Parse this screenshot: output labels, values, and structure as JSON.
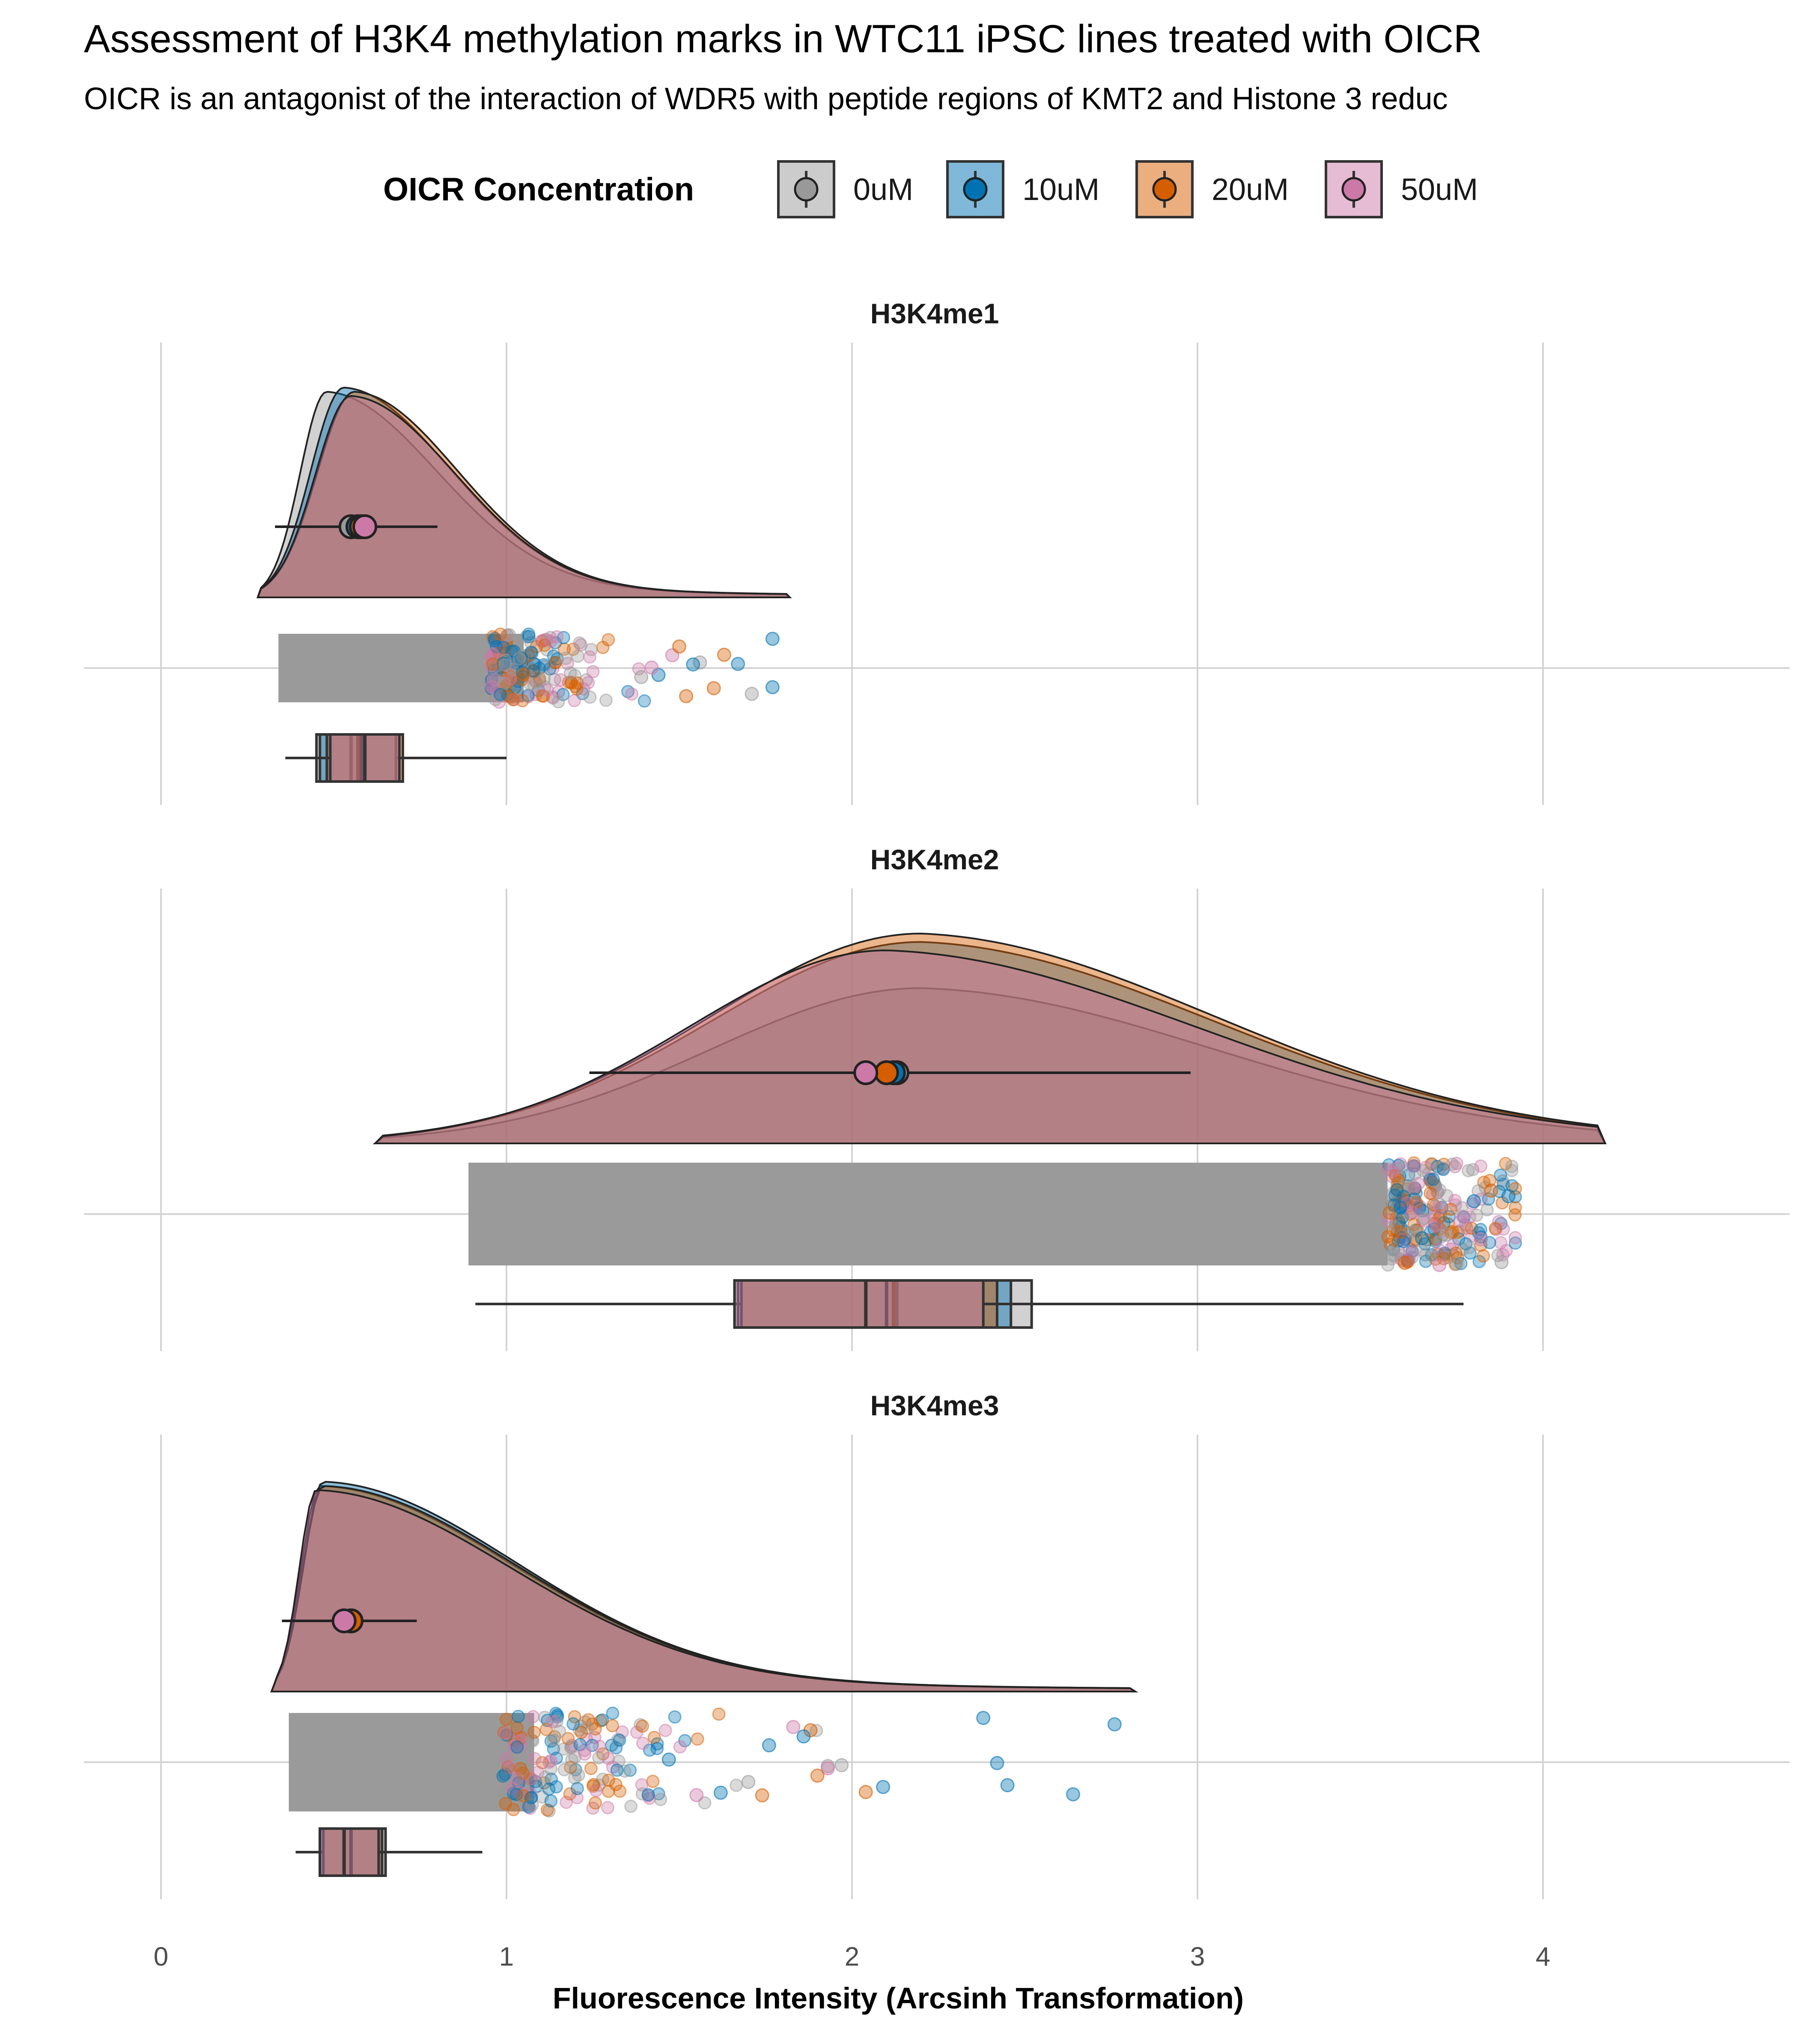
{
  "chart_data": {
    "type": "raincloud",
    "title": "Assessment of H3K4 methylation marks in WTC11 iPSC lines treated with OICR",
    "subtitle": "OICR is an antagonist of the interaction of WDR5 with peptide regions of KMT2 and Histone 3 reduc",
    "xlabel": "Fluorescence Intensity (Arcsinh Transformation)",
    "xlim": [
      -0.22,
      4.72
    ],
    "x_ticks": [
      0,
      1,
      2,
      3,
      4
    ],
    "x_tick_labels": [
      "0",
      "1",
      "2",
      "3",
      "4"
    ],
    "grid": true,
    "legend": {
      "title": "OICR Concentration",
      "position": "top",
      "entries": [
        {
          "label": "0uM",
          "color": "#999999"
        },
        {
          "label": "10uM",
          "color": "#0072B2"
        },
        {
          "label": "20uM",
          "color": "#D55E00"
        },
        {
          "label": "50uM",
          "color": "#CC79A7"
        }
      ]
    },
    "panels": [
      {
        "name": "H3K4me1",
        "density_range": [
          0.28,
          1.82
        ],
        "jitter_range": [
          0.34,
          1.77
        ],
        "groups": [
          {
            "concentration": "0uM",
            "density_peak": 0.48,
            "point_mean": 0.55,
            "sd_range": [
              0.33,
              0.78
            ],
            "box": {
              "whisker_low": 0.36,
              "q1": 0.45,
              "median": 0.55,
              "q3": 0.68,
              "whisker_high": 1.0
            }
          },
          {
            "concentration": "10uM",
            "density_peak": 0.53,
            "point_mean": 0.57,
            "sd_range": [
              0.34,
              0.79
            ],
            "box": {
              "whisker_low": 0.37,
              "q1": 0.46,
              "median": 0.57,
              "q3": 0.69,
              "whisker_high": 1.0
            }
          },
          {
            "concentration": "20uM",
            "density_peak": 0.56,
            "point_mean": 0.58,
            "sd_range": [
              0.35,
              0.8
            ],
            "box": {
              "whisker_low": 0.38,
              "q1": 0.48,
              "median": 0.58,
              "q3": 0.7,
              "whisker_high": 1.0
            }
          },
          {
            "concentration": "50uM",
            "density_peak": 0.55,
            "point_mean": 0.59,
            "sd_range": [
              0.35,
              0.8
            ],
            "box": {
              "whisker_low": 0.38,
              "q1": 0.49,
              "median": 0.59,
              "q3": 0.69,
              "whisker_high": 1.0
            }
          }
        ],
        "outliers": [
          {
            "x": 1.56,
            "concentration": "0uM"
          },
          {
            "x": 1.71,
            "concentration": "0uM"
          },
          {
            "x": 1.77,
            "concentration": "10uM"
          },
          {
            "x": 1.77,
            "concentration": "10uM"
          },
          {
            "x": 1.54,
            "concentration": "10uM"
          },
          {
            "x": 1.67,
            "concentration": "10uM"
          },
          {
            "x": 1.63,
            "concentration": "20uM"
          },
          {
            "x": 1.6,
            "concentration": "20uM"
          },
          {
            "x": 1.52,
            "concentration": "20uM"
          },
          {
            "x": 1.48,
            "concentration": "50uM"
          },
          {
            "x": 1.44,
            "concentration": "10uM"
          },
          {
            "x": 1.5,
            "concentration": "20uM"
          },
          {
            "x": 1.39,
            "concentration": "0uM"
          },
          {
            "x": 1.42,
            "concentration": "50uM"
          }
        ]
      },
      {
        "name": "H3K4me2",
        "density_range": [
          0.62,
          4.18
        ],
        "jitter_range": [
          0.89,
          3.92
        ],
        "groups": [
          {
            "concentration": "0uM",
            "density_peak": 2.2,
            "point_mean": 2.13,
            "sd_range": [
              1.27,
              2.98
            ],
            "box": {
              "whisker_low": 0.91,
              "q1": 1.66,
              "median": 2.13,
              "q3": 2.52,
              "whisker_high": 3.77
            }
          },
          {
            "concentration": "10uM",
            "density_peak": 2.2,
            "point_mean": 2.12,
            "sd_range": [
              1.28,
              2.96
            ],
            "box": {
              "whisker_low": 0.92,
              "q1": 1.67,
              "median": 2.12,
              "q3": 2.46,
              "whisker_high": 3.75
            }
          },
          {
            "concentration": "20uM",
            "density_peak": 2.2,
            "point_mean": 2.1,
            "sd_range": [
              1.27,
              2.94
            ],
            "box": {
              "whisker_low": 0.92,
              "q1": 1.68,
              "median": 2.1,
              "q3": 2.42,
              "whisker_high": 3.72
            }
          },
          {
            "concentration": "50uM",
            "density_peak": 2.1,
            "point_mean": 2.04,
            "sd_range": [
              1.24,
              2.9
            ],
            "box": {
              "whisker_low": 0.92,
              "q1": 1.66,
              "median": 2.04,
              "q3": 2.38,
              "whisker_high": 3.7
            }
          }
        ],
        "outliers": [
          {
            "x": 3.75,
            "concentration": "0uM"
          },
          {
            "x": 3.8,
            "concentration": "10uM"
          },
          {
            "x": 3.85,
            "concentration": "20uM"
          },
          {
            "x": 3.7,
            "concentration": "50uM"
          },
          {
            "x": 3.88,
            "concentration": "0uM"
          },
          {
            "x": 3.65,
            "concentration": "10uM"
          },
          {
            "x": 3.6,
            "concentration": "20uM"
          },
          {
            "x": 3.82,
            "concentration": "50uM"
          },
          {
            "x": 3.72,
            "concentration": "0uM"
          },
          {
            "x": 3.9,
            "concentration": "10uM"
          }
        ]
      },
      {
        "name": "H3K4me3",
        "density_range": [
          0.32,
          2.82
        ],
        "jitter_range": [
          0.37,
          2.76
        ],
        "groups": [
          {
            "concentration": "0uM",
            "density_peak": 0.46,
            "point_mean": 0.55,
            "sd_range": [
              0.36,
              0.74
            ],
            "box": {
              "whisker_low": 0.39,
              "q1": 0.46,
              "median": 0.55,
              "q3": 0.65,
              "whisker_high": 0.93
            }
          },
          {
            "concentration": "10uM",
            "density_peak": 0.47,
            "point_mean": 0.55,
            "sd_range": [
              0.36,
              0.74
            ],
            "box": {
              "whisker_low": 0.39,
              "q1": 0.46,
              "median": 0.55,
              "q3": 0.64,
              "whisker_high": 0.93
            }
          },
          {
            "concentration": "20uM",
            "density_peak": 0.47,
            "point_mean": 0.55,
            "sd_range": [
              0.36,
              0.74
            ],
            "box": {
              "whisker_low": 0.39,
              "q1": 0.47,
              "median": 0.55,
              "q3": 0.64,
              "whisker_high": 0.92
            }
          },
          {
            "concentration": "50uM",
            "density_peak": 0.45,
            "point_mean": 0.53,
            "sd_range": [
              0.35,
              0.73
            ],
            "box": {
              "whisker_low": 0.39,
              "q1": 0.46,
              "median": 0.53,
              "q3": 0.63,
              "whisker_high": 0.92
            }
          }
        ],
        "outliers": [
          {
            "x": 2.42,
            "concentration": "10uM"
          },
          {
            "x": 2.45,
            "concentration": "10uM"
          },
          {
            "x": 2.64,
            "concentration": "10uM"
          },
          {
            "x": 2.38,
            "concentration": "10uM"
          },
          {
            "x": 2.76,
            "concentration": "10uM"
          },
          {
            "x": 2.09,
            "concentration": "10uM"
          },
          {
            "x": 2.04,
            "concentration": "20uM"
          },
          {
            "x": 1.93,
            "concentration": "0uM"
          },
          {
            "x": 1.97,
            "concentration": "0uM"
          },
          {
            "x": 1.93,
            "concentration": "50uM"
          },
          {
            "x": 1.88,
            "concentration": "20uM"
          },
          {
            "x": 1.86,
            "concentration": "10uM"
          },
          {
            "x": 1.83,
            "concentration": "50uM"
          },
          {
            "x": 1.76,
            "concentration": "10uM"
          },
          {
            "x": 1.74,
            "concentration": "20uM"
          },
          {
            "x": 1.7,
            "concentration": "0uM"
          },
          {
            "x": 1.9,
            "concentration": "20uM"
          },
          {
            "x": 1.62,
            "concentration": "10uM"
          },
          {
            "x": 1.55,
            "concentration": "50uM"
          },
          {
            "x": 1.47,
            "concentration": "10uM"
          }
        ]
      }
    ]
  }
}
